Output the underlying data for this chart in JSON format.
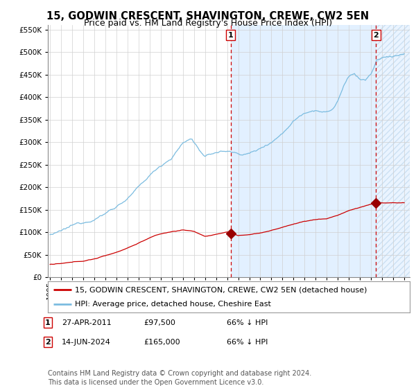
{
  "title": "15, GODWIN CRESCENT, SHAVINGTON, CREWE, CW2 5EN",
  "subtitle": "Price paid vs. HM Land Registry's House Price Index (HPI)",
  "legend_line1": "15, GODWIN CRESCENT, SHAVINGTON, CREWE, CW2 5EN (detached house)",
  "legend_line2": "HPI: Average price, detached house, Cheshire East",
  "annotation1_label": "1",
  "annotation1_date": "27-APR-2011",
  "annotation1_price": 97500,
  "annotation1_year": 2011.32,
  "annotation2_label": "2",
  "annotation2_date": "14-JUN-2024",
  "annotation2_price": 165000,
  "annotation2_year": 2024.46,
  "footer": "Contains HM Land Registry data © Crown copyright and database right 2024.\nThis data is licensed under the Open Government Licence v3.0.",
  "hpi_color": "#7bbce0",
  "price_color": "#cc0000",
  "marker_color": "#990000",
  "vline_color": "#cc0000",
  "bg_fill_color": "#ddeeff",
  "hatch_fill_color": "#ddeeff",
  "ylim_max": 560000,
  "xlim_start": 1994.8,
  "xlim_end": 2027.5,
  "title_fontsize": 10.5,
  "subtitle_fontsize": 9,
  "tick_fontsize": 7.5,
  "legend_fontsize": 8,
  "footer_fontsize": 7
}
